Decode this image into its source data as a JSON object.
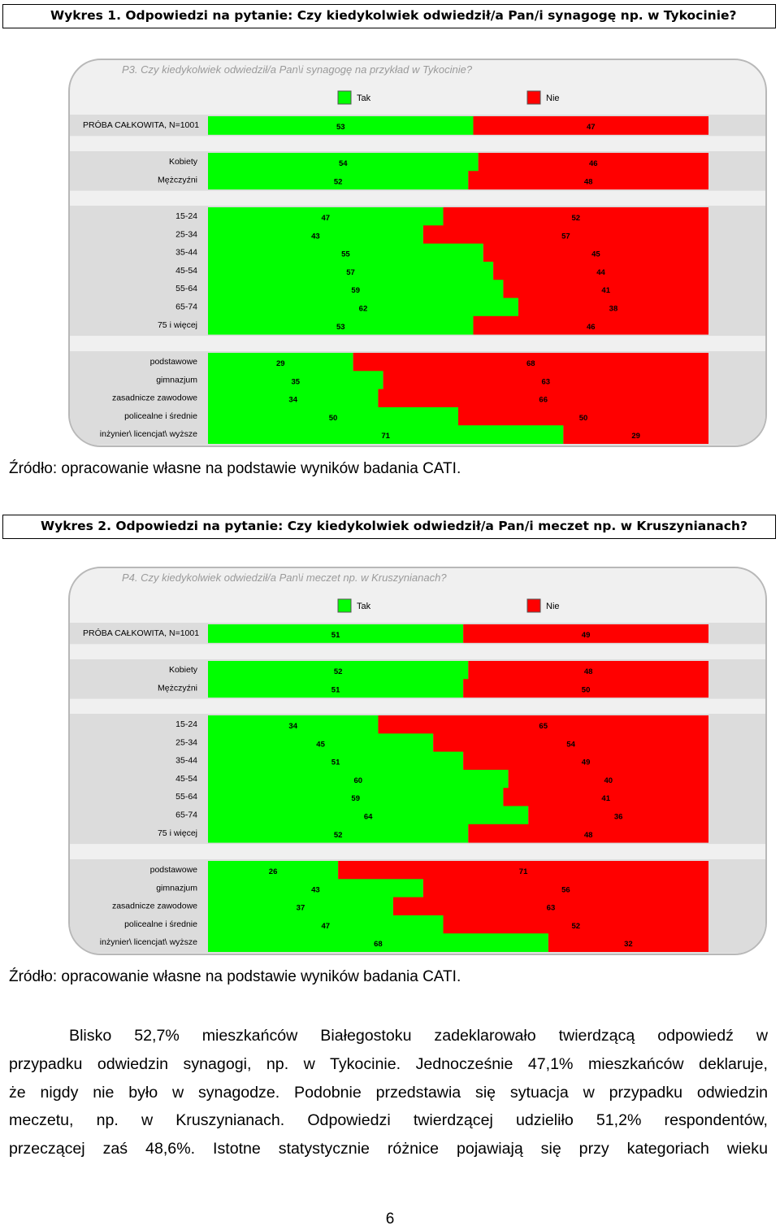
{
  "caption1": "Wykres 1. Odpowiedzi na pytanie: Czy kiedykolwiek odwiedził/a Pan/i synagogę np. w Tykocinie?",
  "caption2": "Wykres 2. Odpowiedzi na pytanie: Czy kiedykolwiek odwiedził/a Pan/i meczet np. w Kruszynianach?",
  "source1": "Źródło: opracowanie własne na podstawie wyników badania CATI.",
  "source2": "Źródło: opracowanie własne na podstawie wyników badania CATI.",
  "paragraph": [
    "Blisko 52,7% mieszkańców Białegostoku zadeklarowało twierdzącą odpowiedź w",
    "przypadku odwiedzin synagogi, np. w Tykocinie. Jednocześnie 47,1% mieszkańców deklaruje,",
    "że nigdy nie było w synagodze. Podobnie przedstawia się sytuacja w przypadku odwiedzin",
    "meczetu, np. w Kruszynianach. Odpowiedzi twierdzącej udzieliło 51,2% respondentów,",
    "przeczącej zaś 48,6%. Istotne statystycznie różnice pojawiają się przy kategoriach wieku"
  ],
  "page_number": "6",
  "colors": {
    "tak": "#00ff00",
    "nie": "#ff0000",
    "title": "#9a9a9a"
  },
  "chart_data": [
    {
      "type": "bar",
      "stacked": true,
      "orientation": "horizontal",
      "title": "P3. Czy kiedykolwiek odwiedził/a Pan\\i synagogę na przykład w Tykocinie?",
      "legend_position": "top",
      "series": [
        {
          "name": "Tak"
        },
        {
          "name": "Nie"
        }
      ],
      "groups": [
        {
          "rows": [
            {
              "label": "PRÓBA CAŁKOWITA, N=1001",
              "tak": 53,
              "nie": 47
            }
          ]
        },
        {
          "rows": [
            {
              "label": "Kobiety",
              "tak": 54,
              "nie": 46
            },
            {
              "label": "Mężczyźni",
              "tak": 52,
              "nie": 48
            }
          ]
        },
        {
          "rows": [
            {
              "label": "15-24",
              "tak": 47,
              "nie": 52
            },
            {
              "label": "25-34",
              "tak": 43,
              "nie": 57
            },
            {
              "label": "35-44",
              "tak": 55,
              "nie": 45
            },
            {
              "label": "45-54",
              "tak": 57,
              "nie": 44
            },
            {
              "label": "55-64",
              "tak": 59,
              "nie": 41
            },
            {
              "label": "65-74",
              "tak": 62,
              "nie": 38
            },
            {
              "label": "75 i więcej",
              "tak": 53,
              "nie": 46
            }
          ]
        },
        {
          "rows": [
            {
              "label": "podstawowe",
              "tak": 29,
              "nie": 68
            },
            {
              "label": "gimnazjum",
              "tak": 35,
              "nie": 63
            },
            {
              "label": "zasadnicze zawodowe",
              "tak": 34,
              "nie": 66
            },
            {
              "label": "policealne i średnie",
              "tak": 50,
              "nie": 50
            },
            {
              "label": "inżynier\\ licencjat\\ wyższe",
              "tak": 71,
              "nie": 29
            }
          ]
        }
      ]
    },
    {
      "type": "bar",
      "stacked": true,
      "orientation": "horizontal",
      "title": "P4. Czy kiedykolwiek odwiedził/a Pan\\i meczet np. w Kruszynianach?",
      "legend_position": "top",
      "series": [
        {
          "name": "Tak"
        },
        {
          "name": "Nie"
        }
      ],
      "groups": [
        {
          "rows": [
            {
              "label": "PRÓBA CAŁKOWITA, N=1001",
              "tak": 51,
              "nie": 49
            }
          ]
        },
        {
          "rows": [
            {
              "label": "Kobiety",
              "tak": 52,
              "nie": 48
            },
            {
              "label": "Mężczyźni",
              "tak": 51,
              "nie": 50
            }
          ]
        },
        {
          "rows": [
            {
              "label": "15-24",
              "tak": 34,
              "nie": 65
            },
            {
              "label": "25-34",
              "tak": 45,
              "nie": 54
            },
            {
              "label": "35-44",
              "tak": 51,
              "nie": 49
            },
            {
              "label": "45-54",
              "tak": 60,
              "nie": 40
            },
            {
              "label": "55-64",
              "tak": 59,
              "nie": 41
            },
            {
              "label": "65-74",
              "tak": 64,
              "nie": 36
            },
            {
              "label": "75 i więcej",
              "tak": 52,
              "nie": 48
            }
          ]
        },
        {
          "rows": [
            {
              "label": "podstawowe",
              "tak": 26,
              "nie": 71
            },
            {
              "label": "gimnazjum",
              "tak": 43,
              "nie": 56
            },
            {
              "label": "zasadnicze zawodowe",
              "tak": 37,
              "nie": 63
            },
            {
              "label": "policealne i średnie",
              "tak": 47,
              "nie": 52
            },
            {
              "label": "inżynier\\ licencjat\\ wyższe",
              "tak": 68,
              "nie": 32
            }
          ]
        }
      ]
    }
  ]
}
